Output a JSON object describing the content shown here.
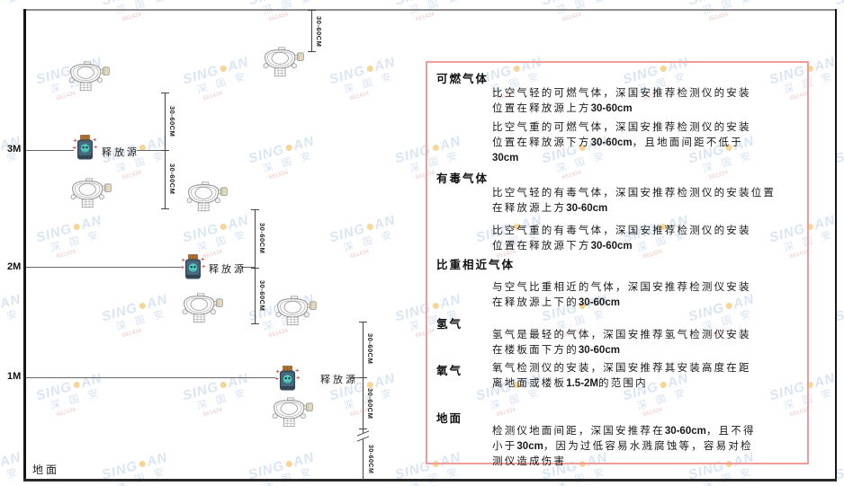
{
  "watermark": {
    "brand_left": "SING",
    "brand_right": "AN",
    "subtext": "深 国 安",
    "code": "661434"
  },
  "diagram": {
    "dimension_label": "30-60CM",
    "height_labels": [
      "3M",
      "2M",
      "1M"
    ],
    "ground_label": "地面",
    "release_source_label": "释放源"
  },
  "panel": {
    "border_color": "#f29b9b",
    "sections": [
      {
        "heading": "可燃气体",
        "paragraphs": [
          {
            "lines": [
              "比空气轻的可燃气体，深国安推荐检测仪的安装",
              "位置在释放源上方30-60cm"
            ]
          },
          {
            "lines": [
              "比空气重的可燃气体，深国安推荐检测仪的安装",
              "位置在释放源下方30-60cm，且地面间距不低于",
              "30cm"
            ]
          }
        ]
      },
      {
        "heading": "有毒气体",
        "paragraphs": [
          {
            "lines": [
              "比空气轻的有毒气体，深国安推荐检测仪的安装位置",
              "在释放源上方30-60cm"
            ]
          },
          {
            "lines": [
              "比空气重的有毒气体，深国安推荐检测仪的安装",
              "位置在释放源下方30-60cm"
            ]
          }
        ]
      },
      {
        "heading": "比重相近气体",
        "paragraphs": [
          {
            "lines": [
              "与空气比重相近的气体，深国安推荐检测仪安装",
              "在释放源上下的30-60cm"
            ]
          }
        ]
      },
      {
        "heading": "氢气",
        "paragraphs": [
          {
            "lines": [
              "氢气是最轻的气体，深国安推荐氢气检测仪安装",
              "在楼板面下方的30-60cm"
            ]
          }
        ]
      },
      {
        "heading": "氧气",
        "inline": true,
        "paragraphs": [
          {
            "lines": [
              "氧气检测仪的安装，深国安推荐其安装高度在距",
              "离地面或楼板1.5-2M的范围内"
            ]
          }
        ]
      },
      {
        "heading": "地面",
        "paragraphs": [
          {
            "lines": [
              "检测仪地面间距，深国安推荐在30-60cm，且不得",
              "小于30cm，因为过低容易水溅腐蚀等，容易对检",
              "测仪造成伤害"
            ]
          }
        ]
      }
    ]
  }
}
